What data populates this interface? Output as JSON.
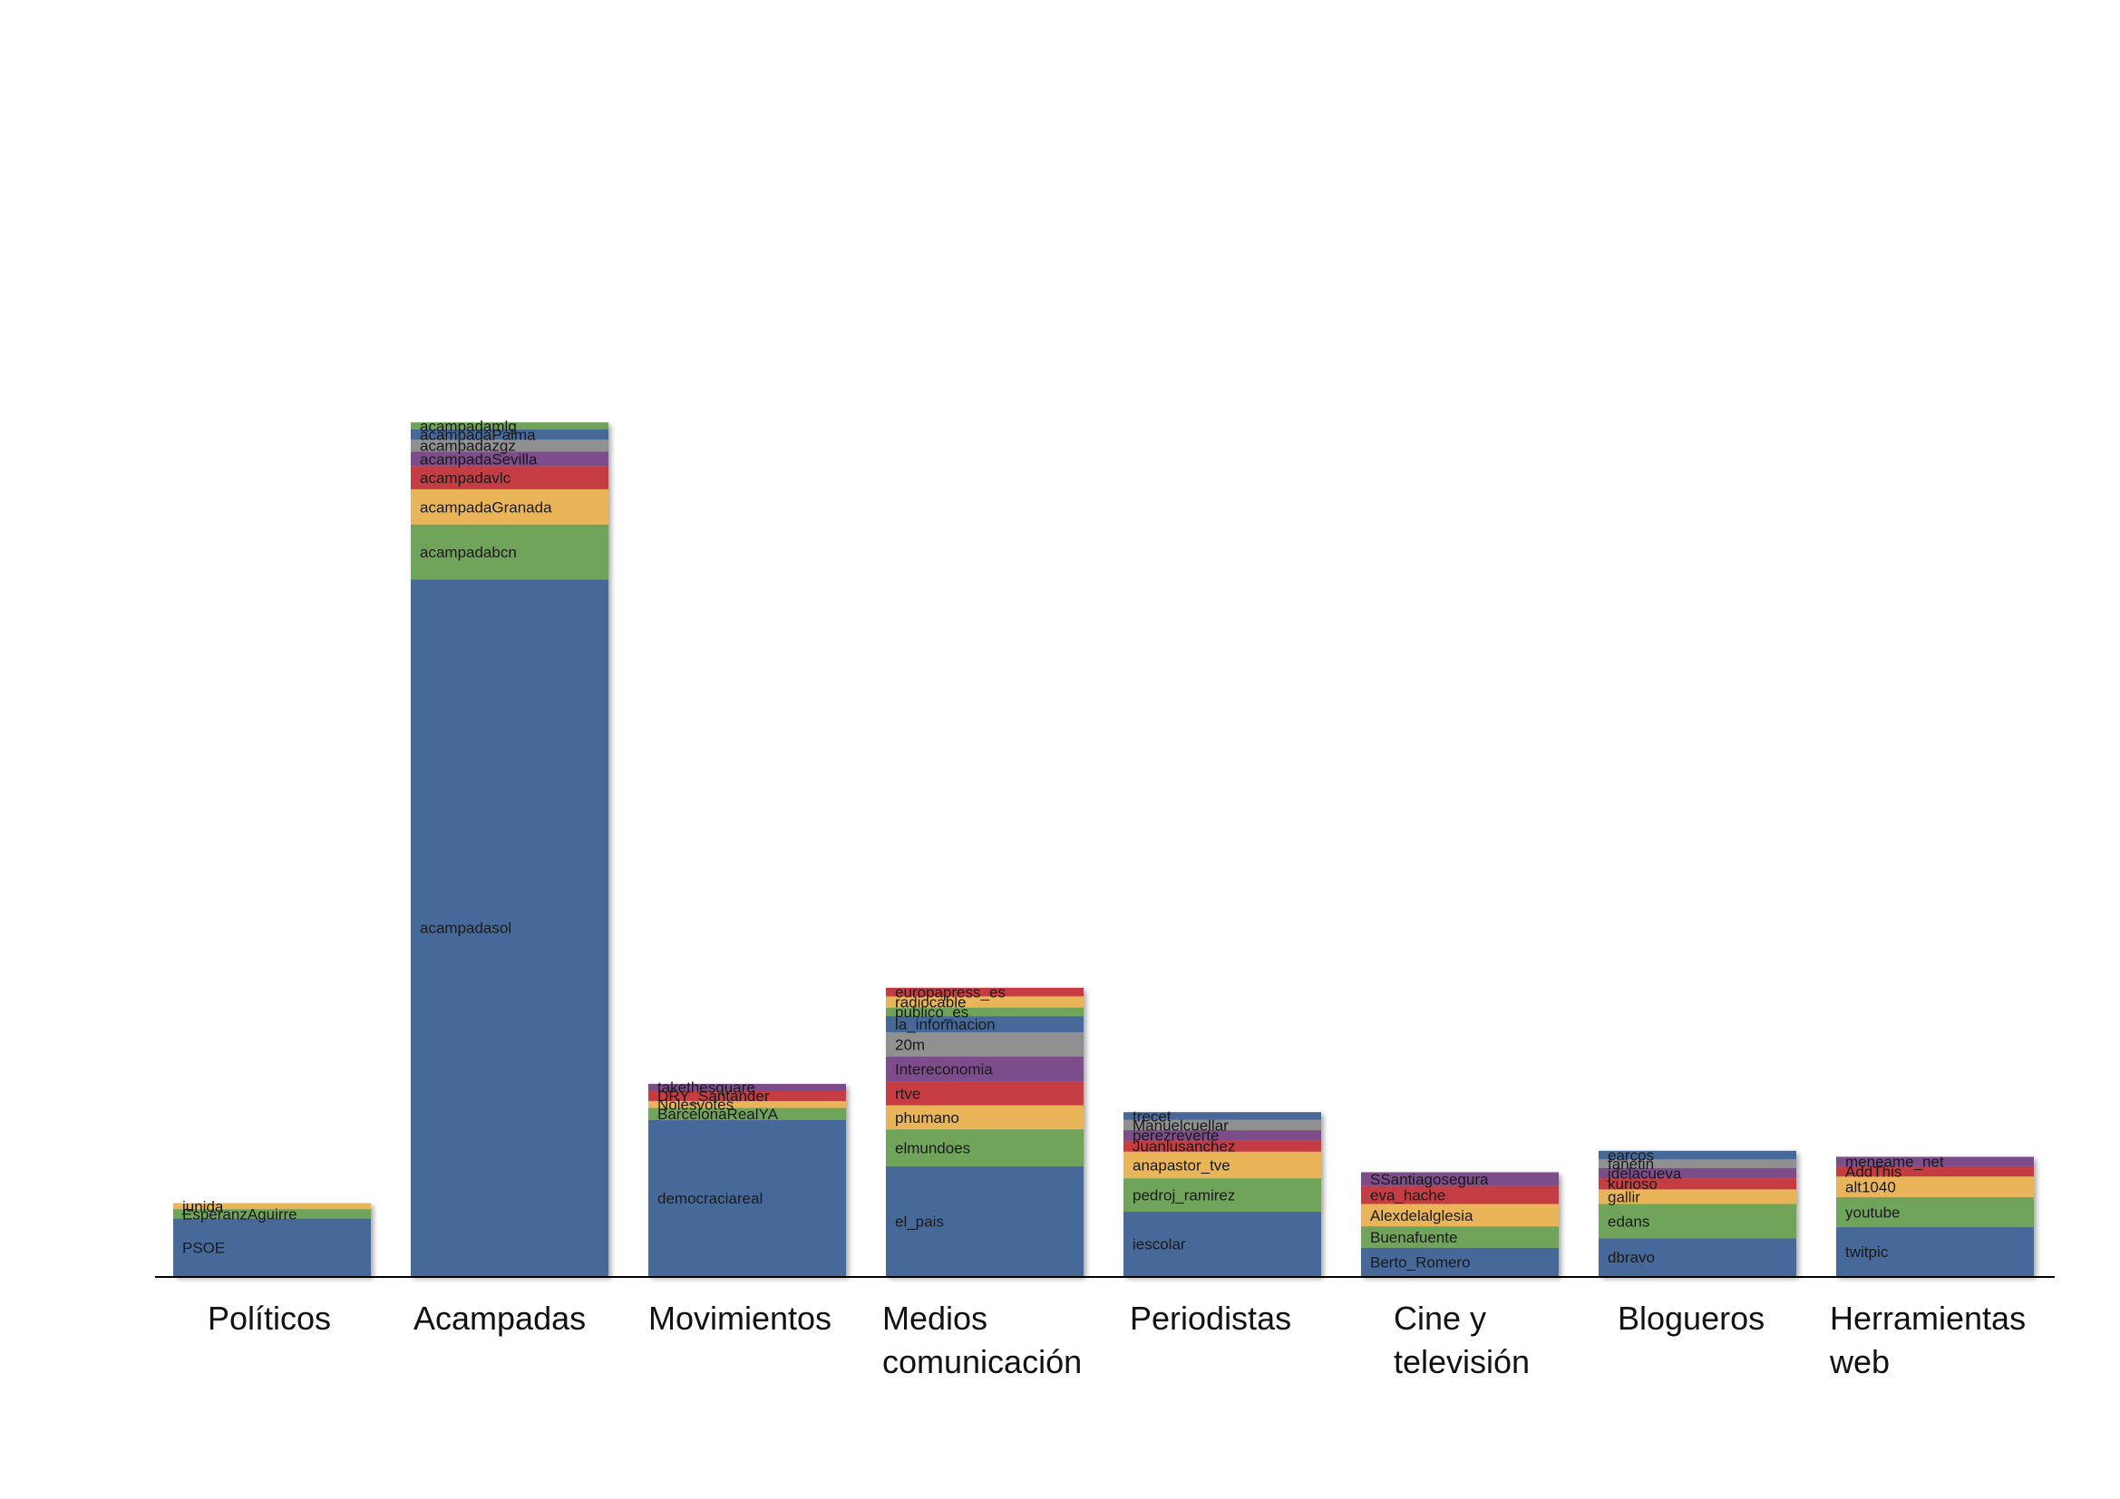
{
  "chart_data": {
    "type": "bar",
    "stacked": true,
    "title": "",
    "xlabel": "",
    "ylabel": "",
    "grid": false,
    "legend": "none",
    "ylim": [
      0,
      1000
    ],
    "palette": {
      "blue": "#46699A",
      "green": "#6FA45A",
      "orange": "#E9B559",
      "red": "#C53C42",
      "purple": "#7D4D8B",
      "gray": "#909090"
    },
    "groups": [
      {
        "category": "Políticos",
        "category_lines": [
          "Políticos"
        ],
        "segments": [
          {
            "name": "PSOE",
            "value": 67,
            "color": "blue"
          },
          {
            "name": "EsperanzAguirre",
            "value": 11,
            "color": "green"
          },
          {
            "name": "junida",
            "value": 7,
            "color": "orange"
          }
        ]
      },
      {
        "category": "Acampadas",
        "category_lines": [
          "Acampadas"
        ],
        "segments": [
          {
            "name": "acampadasol",
            "value": 812,
            "color": "blue"
          },
          {
            "name": "acampadabcn",
            "value": 64,
            "color": "green"
          },
          {
            "name": "acampadaGranada",
            "value": 41,
            "color": "orange"
          },
          {
            "name": "acampadavlc",
            "value": 27,
            "color": "red"
          },
          {
            "name": "acampadaSevilla",
            "value": 17,
            "color": "purple"
          },
          {
            "name": "acampadazgz",
            "value": 14,
            "color": "gray"
          },
          {
            "name": "acampadaPalma",
            "value": 12,
            "color": "blue"
          },
          {
            "name": "acampadamlg",
            "value": 8,
            "color": "green"
          }
        ]
      },
      {
        "category": "Movimientos",
        "category_lines": [
          "Movimientos"
        ],
        "segments": [
          {
            "name": "democraciareal",
            "value": 182,
            "color": "blue"
          },
          {
            "name": "BarcelonaRealYA",
            "value": 14,
            "color": "green"
          },
          {
            "name": "Nolesvotes",
            "value": 8,
            "color": "orange"
          },
          {
            "name": "DRY_Santander",
            "value": 12,
            "color": "red"
          },
          {
            "name": "takethesquare",
            "value": 8,
            "color": "purple"
          }
        ]
      },
      {
        "category": "Medios comunicación",
        "category_lines": [
          "Medios",
          "comunicación"
        ],
        "segments": [
          {
            "name": "el_pais",
            "value": 128,
            "color": "blue"
          },
          {
            "name": "elmundoes",
            "value": 43,
            "color": "green"
          },
          {
            "name": "phumano",
            "value": 28,
            "color": "orange"
          },
          {
            "name": "rtve",
            "value": 28,
            "color": "red"
          },
          {
            "name": "Intereconomia",
            "value": 29,
            "color": "purple"
          },
          {
            "name": "20m",
            "value": 28,
            "color": "gray"
          },
          {
            "name": "la_informacion",
            "value": 19,
            "color": "blue"
          },
          {
            "name": "publico_es",
            "value": 10,
            "color": "green"
          },
          {
            "name": "radiocable",
            "value": 13,
            "color": "orange"
          },
          {
            "name": "europapress_es",
            "value": 10,
            "color": "red"
          }
        ]
      },
      {
        "category": "Periodistas",
        "category_lines": [
          "Periodistas"
        ],
        "segments": [
          {
            "name": "iescolar",
            "value": 75,
            "color": "blue"
          },
          {
            "name": "pedroj_ramirez",
            "value": 39,
            "color": "green"
          },
          {
            "name": "anapastor_tve",
            "value": 31,
            "color": "orange"
          },
          {
            "name": "Juanlusanchez",
            "value": 13,
            "color": "red"
          },
          {
            "name": "perezreverte",
            "value": 12,
            "color": "purple"
          },
          {
            "name": "Manuelcuellar",
            "value": 12,
            "color": "gray"
          },
          {
            "name": "trecet",
            "value": 9,
            "color": "blue"
          }
        ]
      },
      {
        "category": "Cine y televisión",
        "category_lines": [
          "Cine y",
          "televisión"
        ],
        "segments": [
          {
            "name": "Berto_Romero",
            "value": 33,
            "color": "blue"
          },
          {
            "name": "Buenafuente",
            "value": 25,
            "color": "green"
          },
          {
            "name": "Alexdelalglesia",
            "value": 26,
            "color": "orange"
          },
          {
            "name": "eva_hache",
            "value": 21,
            "color": "red"
          },
          {
            "name": "SSantiagosegura",
            "value": 16,
            "color": "purple"
          }
        ]
      },
      {
        "category": "Blogueros",
        "category_lines": [
          "Blogueros"
        ],
        "segments": [
          {
            "name": "dbravo",
            "value": 44,
            "color": "blue"
          },
          {
            "name": "edans",
            "value": 40,
            "color": "green"
          },
          {
            "name": "gallir",
            "value": 17,
            "color": "orange"
          },
          {
            "name": "kurioso",
            "value": 13,
            "color": "red"
          },
          {
            "name": "jdelacueva",
            "value": 12,
            "color": "purple"
          },
          {
            "name": "fanetin",
            "value": 10,
            "color": "gray"
          },
          {
            "name": "earcos",
            "value": 10,
            "color": "blue"
          }
        ]
      },
      {
        "category": "Herramientas web",
        "category_lines": [
          "Herramientas",
          "web"
        ],
        "segments": [
          {
            "name": "twitpic",
            "value": 57,
            "color": "blue"
          },
          {
            "name": "youtube",
            "value": 35,
            "color": "green"
          },
          {
            "name": "alt1040",
            "value": 24,
            "color": "orange"
          },
          {
            "name": "AddThis",
            "value": 12,
            "color": "red"
          },
          {
            "name": "meneame_net",
            "value": 11,
            "color": "purple"
          }
        ]
      }
    ]
  }
}
